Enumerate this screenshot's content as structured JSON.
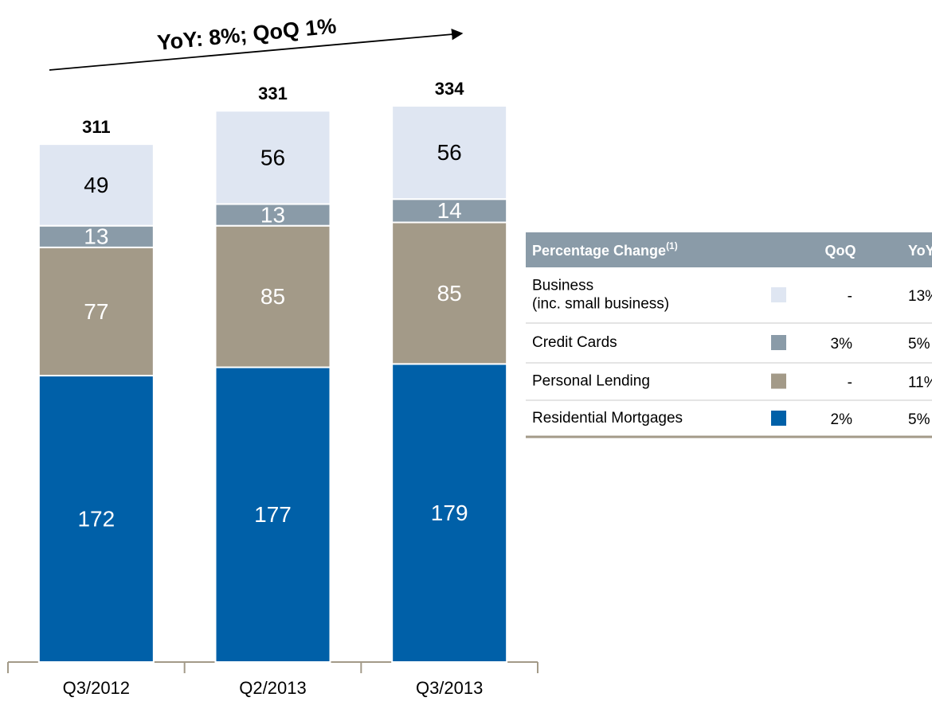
{
  "chart_data": {
    "type": "stacked_bar",
    "annotation": "YoY: 8%; QoQ 1%",
    "categories": [
      "Q3/2012",
      "Q2/2013",
      "Q3/2013"
    ],
    "totals": [
      311,
      331,
      334
    ],
    "series": [
      {
        "color": "#0060a8",
        "label_color": "#ffffff",
        "values": [
          172,
          177,
          179
        ]
      },
      {
        "color": "#a39a88",
        "label_color": "#ffffff",
        "values": [
          77,
          85,
          85
        ]
      },
      {
        "color": "#8a9ba8",
        "label_color": "#ffffff",
        "values": [
          13,
          13,
          14
        ]
      },
      {
        "color": "#dfe6f2",
        "label_color": "#000000",
        "values": [
          49,
          56,
          56
        ]
      }
    ]
  },
  "table": {
    "header": {
      "title": "Percentage Change",
      "note": "(1)",
      "qoq": "QoQ",
      "yoy": "YoY"
    },
    "rows": [
      {
        "label_lines": [
          "Business",
          "(inc. small business)"
        ],
        "color": "#dfe6f2",
        "qoq": "-",
        "yoy": "13%"
      },
      {
        "label_lines": [
          "Credit Cards"
        ],
        "color": "#8a9ba8",
        "qoq": "3%",
        "yoy": "5%"
      },
      {
        "label_lines": [
          "Personal Lending"
        ],
        "color": "#a39a88",
        "qoq": "-",
        "yoy": "11%"
      },
      {
        "label_lines": [
          "Residential Mortgages"
        ],
        "color": "#0060a8",
        "qoq": "2%",
        "yoy": "5%"
      }
    ]
  }
}
